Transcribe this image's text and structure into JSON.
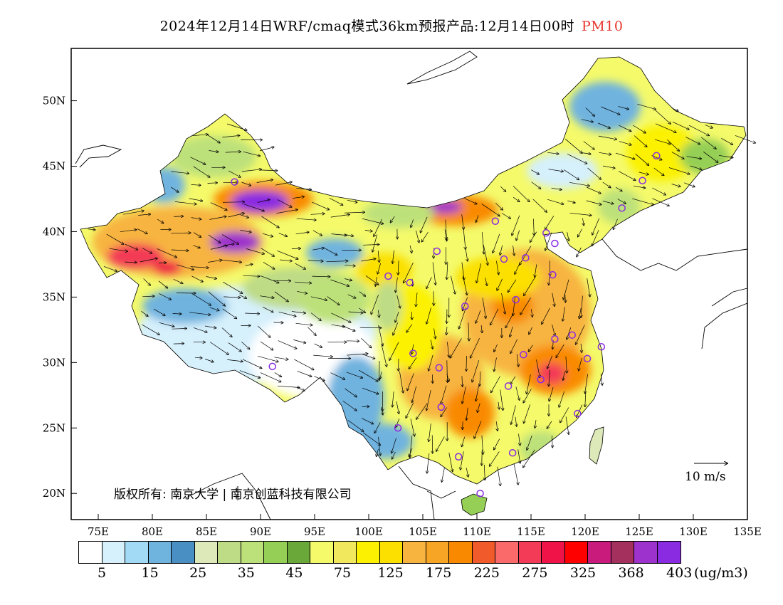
{
  "title": {
    "main": "2024年12月14日WRF/cmaq模式36km预报产品:12月14日00时",
    "pollutant": "PM10",
    "pollutant_color": "#e8322a"
  },
  "axes": {
    "lat_labels": [
      "50N",
      "45N",
      "40N",
      "35N",
      "30N",
      "25N",
      "20N"
    ],
    "lon_labels": [
      "75E",
      "80E",
      "85E",
      "90E",
      "95E",
      "100E",
      "105E",
      "110E",
      "115E",
      "120E",
      "125E",
      "130E",
      "135E"
    ]
  },
  "copyright": "版权所有: 南京大学 | 南京创蓝科技有限公司",
  "wind_reference": "10  m/s",
  "colorbar": {
    "colors": [
      "#ffffff",
      "#d6f0fc",
      "#a2daf5",
      "#6fb3df",
      "#4a8fc4",
      "#dde9b8",
      "#bedc86",
      "#bde17a",
      "#95cf55",
      "#6aa83a",
      "#f4fa6a",
      "#f2e85e",
      "#fbf100",
      "#fbe000",
      "#f7b43f",
      "#f6a524",
      "#f98a00",
      "#f15a2a",
      "#fa6a6a",
      "#f33a56",
      "#ef1347",
      "#ff0000",
      "#c81b7c",
      "#a4305e",
      "#9d33cc",
      "#8a2be2"
    ],
    "labels": [
      "5",
      "15",
      "25",
      "35",
      "45",
      "75",
      "125",
      "175",
      "225",
      "275",
      "325",
      "368",
      "403"
    ],
    "unit": "(ug/m3)"
  },
  "stations": [
    {
      "lon": 87.6,
      "lat": 43.8
    },
    {
      "lon": 91.1,
      "lat": 29.7
    },
    {
      "lon": 101.8,
      "lat": 36.6
    },
    {
      "lon": 103.8,
      "lat": 36.1
    },
    {
      "lon": 106.3,
      "lat": 38.5
    },
    {
      "lon": 111.7,
      "lat": 40.8
    },
    {
      "lon": 112.5,
      "lat": 37.9
    },
    {
      "lon": 114.5,
      "lat": 38.0
    },
    {
      "lon": 116.4,
      "lat": 39.9
    },
    {
      "lon": 117.2,
      "lat": 39.1
    },
    {
      "lon": 117.0,
      "lat": 36.7
    },
    {
      "lon": 113.6,
      "lat": 34.8
    },
    {
      "lon": 108.9,
      "lat": 34.3
    },
    {
      "lon": 104.1,
      "lat": 30.7
    },
    {
      "lon": 106.5,
      "lat": 29.6
    },
    {
      "lon": 114.3,
      "lat": 30.6
    },
    {
      "lon": 117.2,
      "lat": 31.8
    },
    {
      "lon": 118.8,
      "lat": 32.1
    },
    {
      "lon": 120.2,
      "lat": 30.3
    },
    {
      "lon": 121.5,
      "lat": 31.2
    },
    {
      "lon": 112.9,
      "lat": 28.2
    },
    {
      "lon": 115.9,
      "lat": 28.7
    },
    {
      "lon": 119.3,
      "lat": 26.1
    },
    {
      "lon": 106.7,
      "lat": 26.6
    },
    {
      "lon": 102.7,
      "lat": 25.0
    },
    {
      "lon": 108.3,
      "lat": 22.8
    },
    {
      "lon": 113.3,
      "lat": 23.1
    },
    {
      "lon": 110.3,
      "lat": 20.0
    },
    {
      "lon": 123.4,
      "lat": 41.8
    },
    {
      "lon": 125.3,
      "lat": 43.9
    },
    {
      "lon": 126.6,
      "lat": 45.8
    }
  ]
}
